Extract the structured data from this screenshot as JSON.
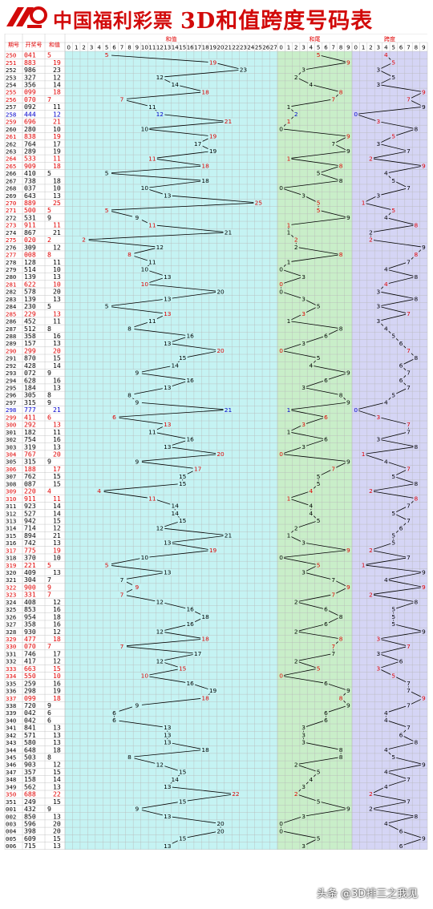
{
  "banner": {
    "brand": "中国福利彩票",
    "title": "3D和值跨度号码表"
  },
  "watermark": "头条 @3D排三之我见",
  "colors": {
    "red": "#e00000",
    "blue": "#0000cc",
    "black": "#000000",
    "sum_bg": "#c5f3f3",
    "tail_bg": "#c9eec9",
    "span_bg": "#d5d5f5"
  },
  "chart_data": {
    "type": "table",
    "column_headers": {
      "issue": "期号",
      "number": "开奖号",
      "sum": "和值"
    },
    "section_titles": {
      "sum": "和值",
      "tail": "和尾",
      "span": "跨度"
    },
    "sum_ticks": [
      "0",
      "1",
      "2",
      "3",
      "4",
      "5",
      "6",
      "7",
      "8",
      "9",
      "10",
      "11",
      "12",
      "13",
      "14",
      "15",
      "16",
      "17",
      "18",
      "19",
      "20",
      "21",
      "22",
      "23",
      "24",
      "25",
      "26",
      "27"
    ],
    "digit_ticks": [
      "0",
      "1",
      "2",
      "3",
      "4",
      "5",
      "6",
      "7",
      "8",
      "9"
    ],
    "rows": [
      {
        "issue": "250",
        "number": "041",
        "sum": 5,
        "tail": 5,
        "span": 4,
        "hl": "r"
      },
      {
        "issue": "251",
        "number": "883",
        "sum": 19,
        "tail": 9,
        "span": 5,
        "hl": "r"
      },
      {
        "issue": "252",
        "number": "986",
        "sum": 23,
        "tail": 3,
        "span": 3,
        "hl": ""
      },
      {
        "issue": "253",
        "number": "327",
        "sum": 12,
        "tail": 2,
        "span": 5,
        "hl": ""
      },
      {
        "issue": "254",
        "number": "356",
        "sum": 14,
        "tail": 4,
        "span": 3,
        "hl": ""
      },
      {
        "issue": "255",
        "number": "099",
        "sum": 18,
        "tail": 8,
        "span": 9,
        "hl": "r"
      },
      {
        "issue": "256",
        "number": "070",
        "sum": 7,
        "tail": 7,
        "span": 7,
        "hl": "r"
      },
      {
        "issue": "257",
        "number": "092",
        "sum": 11,
        "tail": 1,
        "span": 9,
        "hl": ""
      },
      {
        "issue": "258",
        "number": "444",
        "sum": 12,
        "tail": 2,
        "span": 0,
        "hl": "b"
      },
      {
        "issue": "259",
        "number": "696",
        "sum": 21,
        "tail": 1,
        "span": 3,
        "hl": "r"
      },
      {
        "issue": "260",
        "number": "280",
        "sum": 10,
        "tail": 0,
        "span": 8,
        "hl": ""
      },
      {
        "issue": "261",
        "number": "838",
        "sum": 19,
        "tail": 9,
        "span": 5,
        "hl": "r"
      },
      {
        "issue": "262",
        "number": "764",
        "sum": 17,
        "tail": 7,
        "span": 3,
        "hl": ""
      },
      {
        "issue": "263",
        "number": "289",
        "sum": 19,
        "tail": 9,
        "span": 7,
        "hl": ""
      },
      {
        "issue": "264",
        "number": "533",
        "sum": 11,
        "tail": 1,
        "span": 2,
        "hl": "r"
      },
      {
        "issue": "265",
        "number": "909",
        "sum": 18,
        "tail": 8,
        "span": 9,
        "hl": "r"
      },
      {
        "issue": "266",
        "number": "410",
        "sum": 5,
        "tail": 5,
        "span": 4,
        "hl": ""
      },
      {
        "issue": "267",
        "number": "738",
        "sum": 18,
        "tail": 8,
        "span": 5,
        "hl": ""
      },
      {
        "issue": "268",
        "number": "037",
        "sum": 10,
        "tail": 0,
        "span": 7,
        "hl": ""
      },
      {
        "issue": "269",
        "number": "643",
        "sum": 13,
        "tail": 3,
        "span": 3,
        "hl": ""
      },
      {
        "issue": "270",
        "number": "889",
        "sum": 25,
        "tail": 5,
        "span": 1,
        "hl": "r"
      },
      {
        "issue": "271",
        "number": "500",
        "sum": 5,
        "tail": 5,
        "span": 5,
        "hl": "r"
      },
      {
        "issue": "272",
        "number": "531",
        "sum": 9,
        "tail": 9,
        "span": 4,
        "hl": ""
      },
      {
        "issue": "273",
        "number": "911",
        "sum": 11,
        "tail": 1,
        "span": 8,
        "hl": "r"
      },
      {
        "issue": "274",
        "number": "867",
        "sum": 21,
        "tail": 1,
        "span": 2,
        "hl": ""
      },
      {
        "issue": "275",
        "number": "020",
        "sum": 2,
        "tail": 2,
        "span": 2,
        "hl": "r"
      },
      {
        "issue": "276",
        "number": "309",
        "sum": 12,
        "tail": 2,
        "span": 9,
        "hl": ""
      },
      {
        "issue": "277",
        "number": "008",
        "sum": 8,
        "tail": 8,
        "span": 8,
        "hl": "r"
      },
      {
        "issue": "278",
        "number": "128",
        "sum": 11,
        "tail": 1,
        "span": 7,
        "hl": ""
      },
      {
        "issue": "279",
        "number": "514",
        "sum": 10,
        "tail": 0,
        "span": 4,
        "hl": ""
      },
      {
        "issue": "280",
        "number": "139",
        "sum": 13,
        "tail": 3,
        "span": 8,
        "hl": ""
      },
      {
        "issue": "281",
        "number": "622",
        "sum": 10,
        "tail": 0,
        "span": 4,
        "hl": "r"
      },
      {
        "issue": "282",
        "number": "578",
        "sum": 20,
        "tail": 0,
        "span": 3,
        "hl": ""
      },
      {
        "issue": "283",
        "number": "139",
        "sum": 13,
        "tail": 3,
        "span": 8,
        "hl": ""
      },
      {
        "issue": "284",
        "number": "230",
        "sum": 5,
        "tail": 5,
        "span": 3,
        "hl": ""
      },
      {
        "issue": "285",
        "number": "229",
        "sum": 13,
        "tail": 3,
        "span": 7,
        "hl": "r"
      },
      {
        "issue": "286",
        "number": "452",
        "sum": 11,
        "tail": 1,
        "span": 3,
        "hl": ""
      },
      {
        "issue": "287",
        "number": "512",
        "sum": 8,
        "tail": 8,
        "span": 4,
        "hl": ""
      },
      {
        "issue": "288",
        "number": "358",
        "sum": 16,
        "tail": 6,
        "span": 5,
        "hl": ""
      },
      {
        "issue": "289",
        "number": "157",
        "sum": 13,
        "tail": 3,
        "span": 6,
        "hl": ""
      },
      {
        "issue": "290",
        "number": "299",
        "sum": 20,
        "tail": 0,
        "span": 7,
        "hl": "r"
      },
      {
        "issue": "291",
        "number": "870",
        "sum": 15,
        "tail": 5,
        "span": 8,
        "hl": ""
      },
      {
        "issue": "292",
        "number": "428",
        "sum": 14,
        "tail": 4,
        "span": 6,
        "hl": ""
      },
      {
        "issue": "293",
        "number": "072",
        "sum": 9,
        "tail": 9,
        "span": 7,
        "hl": ""
      },
      {
        "issue": "294",
        "number": "628",
        "sum": 16,
        "tail": 6,
        "span": 6,
        "hl": ""
      },
      {
        "issue": "295",
        "number": "184",
        "sum": 13,
        "tail": 3,
        "span": 7,
        "hl": ""
      },
      {
        "issue": "296",
        "number": "305",
        "sum": 8,
        "tail": 8,
        "span": 5,
        "hl": ""
      },
      {
        "issue": "297",
        "number": "315",
        "sum": 9,
        "tail": 9,
        "span": 4,
        "hl": ""
      },
      {
        "issue": "298",
        "number": "777",
        "sum": 21,
        "tail": 1,
        "span": 0,
        "hl": "b"
      },
      {
        "issue": "299",
        "number": "411",
        "sum": 6,
        "tail": 6,
        "span": 3,
        "hl": "r"
      },
      {
        "issue": "300",
        "number": "292",
        "sum": 13,
        "tail": 3,
        "span": 7,
        "hl": "r"
      },
      {
        "issue": "301",
        "number": "182",
        "sum": 11,
        "tail": 1,
        "span": 7,
        "hl": ""
      },
      {
        "issue": "302",
        "number": "754",
        "sum": 16,
        "tail": 6,
        "span": 3,
        "hl": ""
      },
      {
        "issue": "303",
        "number": "319",
        "sum": 13,
        "tail": 3,
        "span": 8,
        "hl": ""
      },
      {
        "issue": "304",
        "number": "767",
        "sum": 20,
        "tail": 0,
        "span": 1,
        "hl": "r"
      },
      {
        "issue": "305",
        "number": "315",
        "sum": 9,
        "tail": 9,
        "span": 4,
        "hl": ""
      },
      {
        "issue": "306",
        "number": "188",
        "sum": 17,
        "tail": 7,
        "span": 7,
        "hl": "r"
      },
      {
        "issue": "307",
        "number": "762",
        "sum": 15,
        "tail": 5,
        "span": 5,
        "hl": ""
      },
      {
        "issue": "308",
        "number": "087",
        "sum": 15,
        "tail": 5,
        "span": 8,
        "hl": ""
      },
      {
        "issue": "309",
        "number": "220",
        "sum": 4,
        "tail": 4,
        "span": 2,
        "hl": "r"
      },
      {
        "issue": "310",
        "number": "911",
        "sum": 11,
        "tail": 1,
        "span": 8,
        "hl": "r"
      },
      {
        "issue": "311",
        "number": "923",
        "sum": 14,
        "tail": 4,
        "span": 7,
        "hl": ""
      },
      {
        "issue": "312",
        "number": "527",
        "sum": 14,
        "tail": 4,
        "span": 5,
        "hl": ""
      },
      {
        "issue": "313",
        "number": "942",
        "sum": 15,
        "tail": 5,
        "span": 7,
        "hl": ""
      },
      {
        "issue": "314",
        "number": "714",
        "sum": 12,
        "tail": 2,
        "span": 6,
        "hl": ""
      },
      {
        "issue": "315",
        "number": "894",
        "sum": 21,
        "tail": 1,
        "span": 5,
        "hl": ""
      },
      {
        "issue": "316",
        "number": "742",
        "sum": 13,
        "tail": 3,
        "span": 5,
        "hl": ""
      },
      {
        "issue": "317",
        "number": "775",
        "sum": 19,
        "tail": 9,
        "span": 2,
        "hl": "r"
      },
      {
        "issue": "318",
        "number": "370",
        "sum": 10,
        "tail": 0,
        "span": 7,
        "hl": ""
      },
      {
        "issue": "319",
        "number": "221",
        "sum": 5,
        "tail": 5,
        "span": 1,
        "hl": "r"
      },
      {
        "issue": "320",
        "number": "409",
        "sum": 13,
        "tail": 3,
        "span": 9,
        "hl": ""
      },
      {
        "issue": "321",
        "number": "304",
        "sum": 7,
        "tail": 7,
        "span": 4,
        "hl": ""
      },
      {
        "issue": "322",
        "number": "900",
        "sum": 9,
        "tail": 9,
        "span": 9,
        "hl": "r"
      },
      {
        "issue": "323",
        "number": "331",
        "sum": 7,
        "tail": 7,
        "span": 2,
        "hl": "r"
      },
      {
        "issue": "324",
        "number": "408",
        "sub": "",
        "sum": 12,
        "tail": 2,
        "span": 8,
        "hl": ""
      },
      {
        "issue": "325",
        "number": "853",
        "sum": 16,
        "tail": 6,
        "span": 5,
        "hl": ""
      },
      {
        "issue": "326",
        "number": "954",
        "sum": 18,
        "tail": 8,
        "span": 5,
        "hl": ""
      },
      {
        "issue": "327",
        "number": "358",
        "sum": 16,
        "tail": 6,
        "span": 5,
        "hl": ""
      },
      {
        "issue": "328",
        "number": "930",
        "sum": 12,
        "tail": 2,
        "span": 9,
        "hl": ""
      },
      {
        "issue": "329",
        "number": "477",
        "sum": 18,
        "tail": 8,
        "span": 3,
        "hl": "r"
      },
      {
        "issue": "330",
        "number": "070",
        "sum": 7,
        "tail": 7,
        "span": 7,
        "hl": "r"
      },
      {
        "issue": "331",
        "number": "746",
        "sum": 17,
        "tail": 7,
        "span": 3,
        "hl": ""
      },
      {
        "issue": "332",
        "number": "417",
        "sum": 12,
        "tail": 2,
        "span": 6,
        "hl": ""
      },
      {
        "issue": "333",
        "number": "663",
        "sum": 15,
        "tail": 5,
        "span": 3,
        "hl": "r"
      },
      {
        "issue": "334",
        "number": "550",
        "sum": 10,
        "tail": 0,
        "span": 5,
        "hl": "r"
      },
      {
        "issue": "335",
        "number": "259",
        "sum": 16,
        "tail": 6,
        "span": 7,
        "hl": ""
      },
      {
        "issue": "336",
        "number": "298",
        "sum": 19,
        "tail": 9,
        "span": 7,
        "hl": ""
      },
      {
        "issue": "337",
        "number": "099",
        "sum": 18,
        "tail": 8,
        "span": 9,
        "hl": "r"
      },
      {
        "issue": "338",
        "number": "720",
        "sum": 9,
        "tail": 9,
        "span": 7,
        "hl": ""
      },
      {
        "issue": "339",
        "number": "042",
        "sum": 6,
        "tail": 6,
        "span": 4,
        "hl": ""
      },
      {
        "issue": "340",
        "number": "042",
        "sum": 6,
        "tail": 6,
        "span": 4,
        "hl": ""
      },
      {
        "issue": "341",
        "number": "841",
        "sum": 13,
        "tail": 3,
        "span": 7,
        "hl": ""
      },
      {
        "issue": "342",
        "number": "571",
        "sum": 13,
        "tail": 3,
        "span": 6,
        "hl": ""
      },
      {
        "issue": "343",
        "number": "580",
        "sum": 13,
        "tail": 3,
        "span": 8,
        "hl": ""
      },
      {
        "issue": "344",
        "number": "648",
        "sum": 18,
        "tail": 8,
        "span": 4,
        "hl": ""
      },
      {
        "issue": "345",
        "number": "503",
        "sum": 8,
        "tail": 8,
        "span": 5,
        "hl": ""
      },
      {
        "issue": "346",
        "number": "903",
        "sum": 12,
        "tail": 2,
        "span": 9,
        "hl": ""
      },
      {
        "issue": "347",
        "number": "357",
        "sum": 15,
        "tail": 5,
        "span": 4,
        "hl": ""
      },
      {
        "issue": "348",
        "number": "158",
        "sum": 14,
        "tail": 4,
        "span": 7,
        "hl": ""
      },
      {
        "issue": "349",
        "number": "562",
        "sum": 13,
        "tail": 3,
        "span": 4,
        "hl": ""
      },
      {
        "issue": "350",
        "number": "688",
        "sum": 22,
        "tail": 2,
        "span": 2,
        "hl": "r"
      },
      {
        "issue": "351",
        "number": "249",
        "sum": 15,
        "tail": 5,
        "span": 7,
        "hl": ""
      },
      {
        "issue": "001",
        "number": "432",
        "sum": 9,
        "tail": 9,
        "span": 2,
        "hl": ""
      },
      {
        "issue": "002",
        "number": "850",
        "sum": 13,
        "tail": 3,
        "span": 8,
        "hl": ""
      },
      {
        "issue": "003",
        "number": "596",
        "sum": 20,
        "tail": 0,
        "span": 4,
        "hl": ""
      },
      {
        "issue": "004",
        "number": "398",
        "sum": 20,
        "tail": 0,
        "span": 6,
        "hl": ""
      },
      {
        "issue": "005",
        "number": "609",
        "sum": 15,
        "tail": 5,
        "span": 9,
        "hl": ""
      },
      {
        "issue": "006",
        "number": "715",
        "sum": 13,
        "tail": 3,
        "span": 6,
        "hl": ""
      }
    ]
  }
}
